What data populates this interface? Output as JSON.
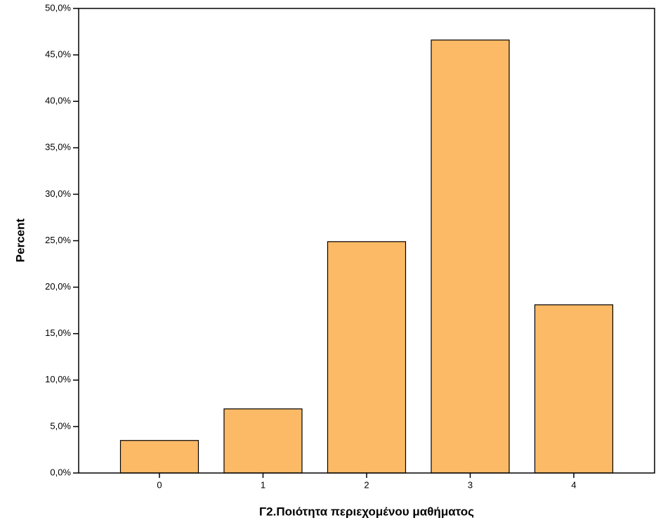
{
  "chart_data": {
    "type": "bar",
    "x_label": "Γ2.Ποιότητα περιεχομένου μαθήματος",
    "y_label": "Percent",
    "categories": [
      "0",
      "1",
      "2",
      "3",
      "4"
    ],
    "values": [
      3.5,
      6.9,
      24.9,
      46.6,
      18.1
    ],
    "color": "#fdba66",
    "ylim": [
      0,
      50
    ],
    "yticks": [
      {
        "value": 0,
        "label": "0,0%"
      },
      {
        "value": 5,
        "label": "5,0%"
      },
      {
        "value": 10,
        "label": "10,0%"
      },
      {
        "value": 15,
        "label": "15,0%"
      },
      {
        "value": 20,
        "label": "20,0%"
      },
      {
        "value": 25,
        "label": "25,0%"
      },
      {
        "value": 30,
        "label": "30,0%"
      },
      {
        "value": 35,
        "label": "35,0%"
      },
      {
        "value": 40,
        "label": "40,0%"
      },
      {
        "value": 45,
        "label": "45,0%"
      },
      {
        "value": 50,
        "label": "50,0%"
      }
    ],
    "grid": false
  }
}
